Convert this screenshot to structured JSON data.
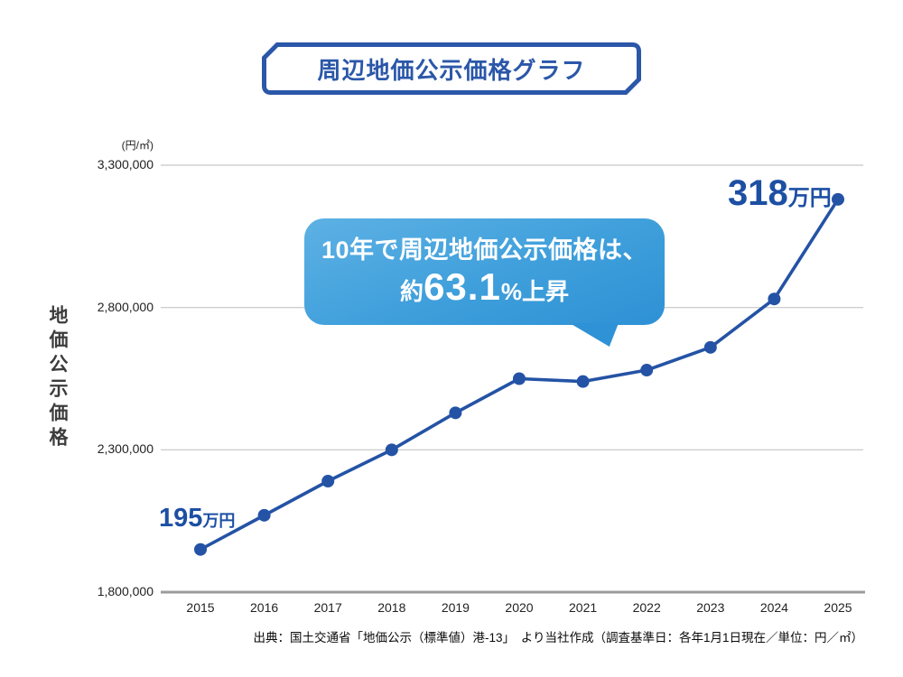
{
  "title": "周辺地価公示価格グラフ",
  "y_axis": {
    "title": "地価公示価格",
    "unit": "(円/㎡)"
  },
  "annotations": {
    "start": {
      "value": "195",
      "unit": "万円"
    },
    "end": {
      "value": "318",
      "unit": "万円"
    }
  },
  "bubble": {
    "line1": "10年で周辺地価公示価格は、",
    "line2_prefix": "約",
    "line2_big": "63.1",
    "line2_percent": "%",
    "line2_suffix": "上昇"
  },
  "source": "出典：国土交通省「地価公示（標準値）港-13」　より当社作成（調査基準日：各年1月1日現在／単位：円／㎡）",
  "colors": {
    "line_blue": "#2453a5",
    "label_blue": "#1d4fa3",
    "title_blue": "#2b57a9",
    "bubble_blue_light": "#5db1e4",
    "bubble_blue_dark": "#2e91d5",
    "grid_gray": "#c6c6c6",
    "axis_gray": "#9b9b9b"
  },
  "chart_data": {
    "type": "line",
    "categories": [
      "2015",
      "2016",
      "2017",
      "2018",
      "2019",
      "2020",
      "2021",
      "2022",
      "2023",
      "2024",
      "2025"
    ],
    "values": [
      1950000,
      2070000,
      2190000,
      2300000,
      2430000,
      2550000,
      2540000,
      2580000,
      2660000,
      2830000,
      3180000
    ],
    "series_name": "地価公示価格",
    "title": "周辺地価公示価格グラフ",
    "xlabel": "",
    "ylabel": "地価公示価格",
    "unit": "円/㎡",
    "ylim": [
      1800000,
      3300000
    ],
    "yticks": [
      1800000,
      2300000,
      2800000,
      3300000
    ],
    "ytick_labels": [
      "1,800,000",
      "2,300,000",
      "2,800,000",
      "3,300,000"
    ],
    "grid": true,
    "legend": false,
    "notes": "start point labeled 195万円, end point labeled 318万円, 10-year rise approx 63.1%"
  }
}
